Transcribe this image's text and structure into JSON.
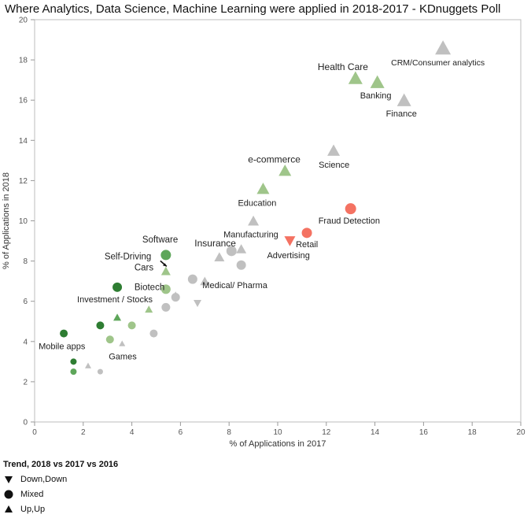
{
  "chart_data": {
    "type": "scatter",
    "title": "Where Analytics, Data Science, Machine Learning were applied in 2018-2017 - KDnuggets Poll",
    "xlabel": "% of Applications in 2017",
    "ylabel": "% of Applications in 2018",
    "xlim": [
      0,
      20
    ],
    "ylim": [
      0,
      20
    ],
    "x_ticks": [
      0,
      2,
      4,
      6,
      8,
      10,
      12,
      14,
      16,
      18,
      20
    ],
    "y_ticks": [
      0,
      2,
      4,
      6,
      8,
      10,
      12,
      14,
      16,
      18,
      20
    ],
    "grid": false,
    "legend": {
      "title": "Trend, 2018 vs 2017 vs 2016",
      "placement": "bottom-left",
      "items": [
        {
          "shape": "triangle-down",
          "label": "Down,Down"
        },
        {
          "shape": "circle",
          "label": "Mixed"
        },
        {
          "shape": "triangle-up",
          "label": "Up,Up"
        }
      ]
    },
    "colors": {
      "gray": "#c0c0c0",
      "light_green": "#9fc58a",
      "mid_green": "#5ea65a",
      "dark_green": "#2e7d32",
      "red": "#f47262"
    },
    "points": [
      {
        "label": "CRM/Consumer analytics",
        "x": 16.8,
        "y": 18.6,
        "shape": "triangle-up",
        "color": "#c0c0c0",
        "size": 10
      },
      {
        "label": "Health Care",
        "x": 13.2,
        "y": 17.1,
        "shape": "triangle-up",
        "color": "#9fc58a",
        "size": 9
      },
      {
        "label": "Banking",
        "x": 14.1,
        "y": 16.9,
        "shape": "triangle-up",
        "color": "#9fc58a",
        "size": 9
      },
      {
        "label": "Finance",
        "x": 15.2,
        "y": 16.0,
        "shape": "triangle-up",
        "color": "#c0c0c0",
        "size": 9
      },
      {
        "label": "Science",
        "x": 12.3,
        "y": 13.5,
        "shape": "triangle-up",
        "color": "#c0c0c0",
        "size": 8
      },
      {
        "label": "e-commerce",
        "x": 10.3,
        "y": 12.5,
        "shape": "triangle-up",
        "color": "#9fc58a",
        "size": 8
      },
      {
        "label": "Education",
        "x": 9.4,
        "y": 11.6,
        "shape": "triangle-up",
        "color": "#9fc58a",
        "size": 8
      },
      {
        "label": "Fraud Detection",
        "x": 13.0,
        "y": 10.6,
        "shape": "circle",
        "color": "#f47262",
        "size": 7
      },
      {
        "label": "Manufacturing",
        "x": 9.0,
        "y": 10.0,
        "shape": "triangle-up",
        "color": "#c0c0c0",
        "size": 7
      },
      {
        "label": "Retail",
        "x": 11.2,
        "y": 9.4,
        "shape": "circle",
        "color": "#f47262",
        "size": 6.5
      },
      {
        "label": "Advertising",
        "x": 10.5,
        "y": 9.0,
        "shape": "triangle-down",
        "color": "#f47262",
        "size": 7
      },
      {
        "label": "Insurance",
        "x": 8.1,
        "y": 8.5,
        "shape": "circle",
        "color": "#c0c0c0",
        "size": 6.5
      },
      {
        "label": "",
        "x": 8.5,
        "y": 8.6,
        "shape": "triangle-up",
        "color": "#c0c0c0",
        "size": 6.5
      },
      {
        "label": "",
        "x": 7.6,
        "y": 8.2,
        "shape": "triangle-up",
        "color": "#c0c0c0",
        "size": 6.5
      },
      {
        "label": "Software",
        "x": 5.4,
        "y": 8.3,
        "shape": "circle",
        "color": "#5ea65a",
        "size": 6.5
      },
      {
        "label": "Self-Driving Cars",
        "x": 5.4,
        "y": 7.5,
        "shape": "triangle-up",
        "color": "#9fc58a",
        "size": 6
      },
      {
        "label": "",
        "x": 8.5,
        "y": 7.8,
        "shape": "circle",
        "color": "#c0c0c0",
        "size": 6
      },
      {
        "label": "Medical/ Pharma",
        "x": 7.0,
        "y": 7.0,
        "shape": "triangle-up",
        "color": "#c0c0c0",
        "size": 6
      },
      {
        "label": "",
        "x": 6.5,
        "y": 7.1,
        "shape": "circle",
        "color": "#c0c0c0",
        "size": 6
      },
      {
        "label": "Biotech",
        "x": 5.4,
        "y": 6.6,
        "shape": "circle",
        "color": "#9fc58a",
        "size": 6
      },
      {
        "label": "",
        "x": 5.8,
        "y": 6.2,
        "shape": "circle",
        "color": "#c0c0c0",
        "size": 5.5
      },
      {
        "label": "",
        "x": 5.8,
        "y": 6.3,
        "shape": "triangle-up",
        "color": "#c0c0c0",
        "size": 5
      },
      {
        "label": "",
        "x": 6.7,
        "y": 5.9,
        "shape": "triangle-down",
        "color": "#c0c0c0",
        "size": 5
      },
      {
        "label": "Investment / Stocks",
        "x": 3.4,
        "y": 6.7,
        "shape": "circle",
        "color": "#2e7d32",
        "size": 6
      },
      {
        "label": "",
        "x": 5.4,
        "y": 5.7,
        "shape": "circle",
        "color": "#c0c0c0",
        "size": 5.5
      },
      {
        "label": "",
        "x": 4.7,
        "y": 5.6,
        "shape": "triangle-up",
        "color": "#9fc58a",
        "size": 5
      },
      {
        "label": "",
        "x": 3.4,
        "y": 5.2,
        "shape": "triangle-up",
        "color": "#5ea65a",
        "size": 5
      },
      {
        "label": "",
        "x": 2.7,
        "y": 4.8,
        "shape": "circle",
        "color": "#2e7d32",
        "size": 5
      },
      {
        "label": "",
        "x": 4.0,
        "y": 4.8,
        "shape": "circle",
        "color": "#9fc58a",
        "size": 5
      },
      {
        "label": "Mobile apps",
        "x": 1.2,
        "y": 4.4,
        "shape": "circle",
        "color": "#2e7d32",
        "size": 5
      },
      {
        "label": "",
        "x": 4.9,
        "y": 4.4,
        "shape": "circle",
        "color": "#c0c0c0",
        "size": 5
      },
      {
        "label": "",
        "x": 3.1,
        "y": 4.1,
        "shape": "circle",
        "color": "#9fc58a",
        "size": 5
      },
      {
        "label": "Games",
        "x": 3.6,
        "y": 3.9,
        "shape": "triangle-up",
        "color": "#c0c0c0",
        "size": 4
      },
      {
        "label": "",
        "x": 1.6,
        "y": 3.0,
        "shape": "circle",
        "color": "#2e7d32",
        "size": 4
      },
      {
        "label": "",
        "x": 2.2,
        "y": 2.8,
        "shape": "triangle-up",
        "color": "#c0c0c0",
        "size": 4
      },
      {
        "label": "",
        "x": 1.6,
        "y": 2.5,
        "shape": "circle",
        "color": "#5ea65a",
        "size": 4
      },
      {
        "label": "",
        "x": 2.7,
        "y": 2.5,
        "shape": "circle",
        "color": "#c0c0c0",
        "size": 3.5
      }
    ]
  }
}
